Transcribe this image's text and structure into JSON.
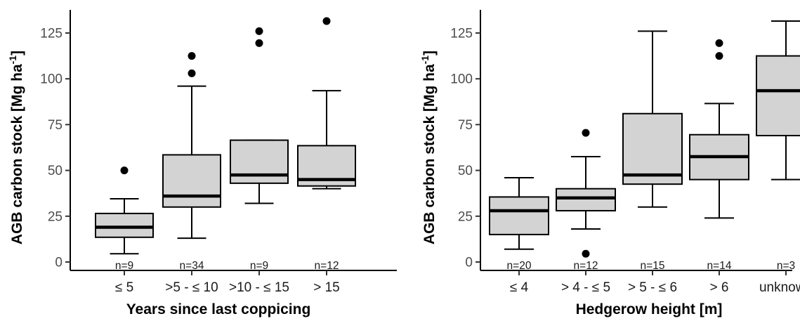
{
  "chart_data": [
    {
      "type": "box",
      "xlabel": "Years since last coppicing",
      "ylabel": "AGB carbon stock [Mg ha",
      "ylabel_superscript": "-1",
      "ylabel_close": "]",
      "ylim": [
        -3,
        137
      ],
      "yticks": [
        "0",
        "25",
        "50",
        "75",
        "100",
        "125"
      ],
      "ytick_values": [
        0,
        25,
        50,
        75,
        100,
        125
      ],
      "grid": false,
      "fill_color": "#d3d3d3",
      "categories": [
        "≤ 5",
        ">5 - ≤ 10",
        ">10 - ≤ 15",
        "> 15"
      ],
      "boxes": [
        {
          "n": "n=9",
          "min": 4.5,
          "q1": 13.5,
          "median": 19,
          "q3": 26.5,
          "max": 34.5,
          "outliers": [
            50
          ]
        },
        {
          "n": "n=34",
          "min": 13,
          "q1": 30,
          "median": 36,
          "q3": 58.5,
          "max": 96,
          "outliers": [
            103,
            112.5
          ]
        },
        {
          "n": "n=9",
          "min": 32,
          "q1": 43,
          "median": 47.5,
          "q3": 66.5,
          "max": 66.5,
          "outliers": [
            119.5,
            126
          ]
        },
        {
          "n": "n=12",
          "min": 40,
          "q1": 41.5,
          "median": 45,
          "q3": 63.5,
          "max": 93.5,
          "outliers": [
            131.5
          ]
        }
      ]
    },
    {
      "type": "box",
      "xlabel": "Hedgerow height [m]",
      "ylabel": "AGB carbon stock [Mg ha",
      "ylabel_superscript": "-1",
      "ylabel_close": "]",
      "ylim": [
        -3,
        137
      ],
      "yticks": [
        "0",
        "25",
        "50",
        "75",
        "100",
        "125"
      ],
      "ytick_values": [
        0,
        25,
        50,
        75,
        100,
        125
      ],
      "grid": false,
      "fill_color": "#d3d3d3",
      "categories": [
        "≤ 4",
        "> 4 - ≤ 5",
        "> 5 - ≤ 6",
        "> 6",
        "unknown"
      ],
      "boxes": [
        {
          "n": "n=20",
          "min": 7,
          "q1": 15,
          "median": 28,
          "q3": 35.5,
          "max": 46,
          "outliers": []
        },
        {
          "n": "n=12",
          "min": 18,
          "q1": 28,
          "median": 35,
          "q3": 40,
          "max": 57.5,
          "outliers": [
            70.5,
            4.5
          ]
        },
        {
          "n": "n=15",
          "min": 30,
          "q1": 42.5,
          "median": 47.5,
          "q3": 81,
          "max": 126,
          "outliers": []
        },
        {
          "n": "n=14",
          "min": 24,
          "q1": 45,
          "median": 57.5,
          "q3": 69.5,
          "max": 86.5,
          "outliers": [
            112.5,
            119.5
          ]
        },
        {
          "n": "n=3",
          "min": 45,
          "q1": 69,
          "median": 93.5,
          "q3": 112.5,
          "max": 131.5,
          "outliers": []
        }
      ]
    }
  ]
}
